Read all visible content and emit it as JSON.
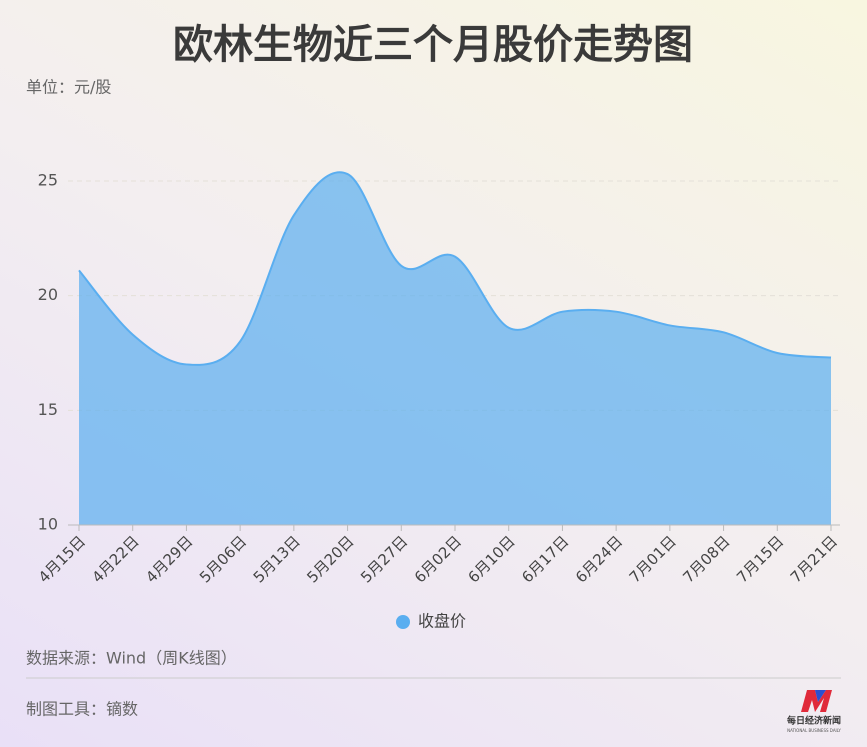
{
  "chart_data": {
    "type": "area",
    "title": "欧林生物近三个月股价走势图",
    "subtitle": "单位：元/股",
    "categories": [
      "4月15日",
      "4月22日",
      "4月29日",
      "5月06日",
      "5月13日",
      "5月20日",
      "5月27日",
      "6月02日",
      "6月10日",
      "6月17日",
      "6月24日",
      "7月01日",
      "7月08日",
      "7月15日",
      "7月21日"
    ],
    "series": [
      {
        "name": "收盘价",
        "color": "#5aaef0",
        "values": [
          21.1,
          18.3,
          17.0,
          18.0,
          23.5,
          25.3,
          21.3,
          21.7,
          18.6,
          19.3,
          19.3,
          18.7,
          18.4,
          17.5,
          17.3
        ]
      }
    ],
    "ylim": [
      10,
      26
    ],
    "yticks": [
      10,
      15,
      20,
      25
    ],
    "grid": true
  },
  "notes": [
    "数据来源：Wind（周K线图）",
    "制图工具：镝数"
  ],
  "logo": {
    "text": "每日经济新闻",
    "sub": "NATIONAL BUSINESS DAILY"
  }
}
